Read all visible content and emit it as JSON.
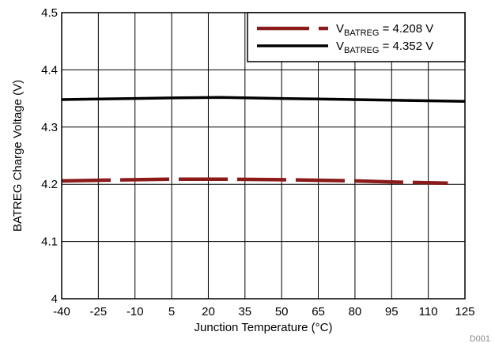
{
  "chart_data": {
    "type": "line",
    "title": "",
    "xlabel": "Junction Temperature (°C)",
    "ylabel": "BATREG Charge Voltage (V)",
    "xlim": [
      -40,
      125
    ],
    "ylim": [
      4.0,
      4.5
    ],
    "x_ticks": [
      "-40",
      "-25",
      "-10",
      "5",
      "20",
      "35",
      "50",
      "65",
      "80",
      "95",
      "110",
      "125"
    ],
    "y_ticks": [
      "4",
      "4.1",
      "4.2",
      "4.3",
      "4.4",
      "4.5"
    ],
    "grid": true,
    "legend_position": "top-right",
    "series": [
      {
        "name": "V_BATREG = 4.208 V",
        "legend_main": "V",
        "legend_sub": "BATREG",
        "legend_rest": " = 4.208 V",
        "style": "dashed",
        "color": "#8b1a1a",
        "x": [
          -40,
          -25,
          -10,
          5,
          25,
          50,
          65,
          80,
          95,
          118
        ],
        "y": [
          4.206,
          4.207,
          4.208,
          4.209,
          4.209,
          4.208,
          4.207,
          4.206,
          4.204,
          4.202
        ]
      },
      {
        "name": "V_BATREG = 4.352 V",
        "legend_main": "V",
        "legend_sub": "BATREG",
        "legend_rest": " = 4.352 V",
        "style": "solid",
        "color": "#000000",
        "x": [
          -40,
          -25,
          -10,
          5,
          25,
          50,
          65,
          80,
          95,
          110,
          125
        ],
        "y": [
          4.348,
          4.349,
          4.35,
          4.351,
          4.352,
          4.35,
          4.349,
          4.348,
          4.347,
          4.346,
          4.345
        ]
      }
    ],
    "annotation": "D001"
  }
}
